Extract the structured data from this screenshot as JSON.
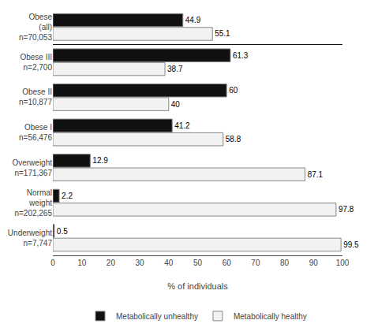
{
  "chart_data": {
    "type": "bar",
    "orientation": "horizontal",
    "categories": [
      "Obese\n(all)\nn=70,053",
      "Obese III\nn=2,700",
      "Obese II\nn=10,877",
      "Obese I\nn=56,476",
      "Overweight\nn=171,367",
      "Normal\nweight\nn=202,265",
      "Underweight\nn=7,747"
    ],
    "series": [
      {
        "name": "Metabolically unhealthy",
        "color": "#111111",
        "values": [
          44.9,
          61.3,
          60,
          41.2,
          12.9,
          2.2,
          0.5
        ]
      },
      {
        "name": "Metabolically healthy",
        "color": "#f2f2f2",
        "values": [
          55.1,
          38.7,
          40,
          58.8,
          87.1,
          97.8,
          99.5
        ]
      }
    ],
    "xlabel": "% of individuals",
    "xlim": [
      0,
      100
    ],
    "xticks": [
      0,
      10,
      20,
      30,
      40,
      50,
      60,
      70,
      80,
      90,
      100
    ],
    "data_labels": true,
    "grid": false,
    "legend": "bottom"
  }
}
